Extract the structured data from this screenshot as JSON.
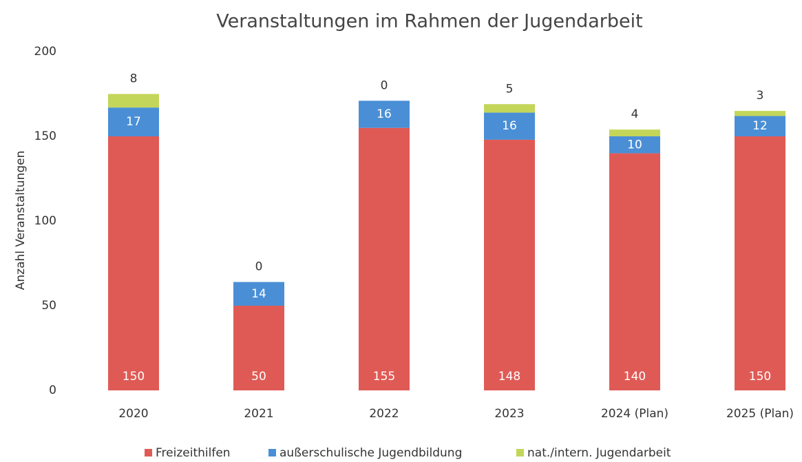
{
  "chart_data": {
    "type": "bar",
    "stacked": true,
    "title": "Veranstaltungen im Rahmen der Jugendarbeit",
    "y_label": "Anzahl Veranstaltungen",
    "categories": [
      "2020",
      "2021",
      "2022",
      "2023",
      "2024 (Plan)",
      "2025 (Plan)"
    ],
    "series": [
      {
        "name": "Freizeithilfen",
        "color": "#e05a55",
        "values": [
          150,
          50,
          155,
          148,
          140,
          150
        ]
      },
      {
        "name": "außerschulische Jugendbildung",
        "color": "#4a8fd6",
        "values": [
          17,
          14,
          16,
          16,
          10,
          12
        ]
      },
      {
        "name": "nat./intern. Jugendarbeit",
        "color": "#c3d65a",
        "values": [
          8,
          0,
          0,
          5,
          4,
          3
        ]
      }
    ],
    "ylim": [
      0,
      200
    ],
    "yticks": [
      0,
      50,
      100,
      150,
      200
    ],
    "grid": false,
    "legend": "bottom"
  }
}
